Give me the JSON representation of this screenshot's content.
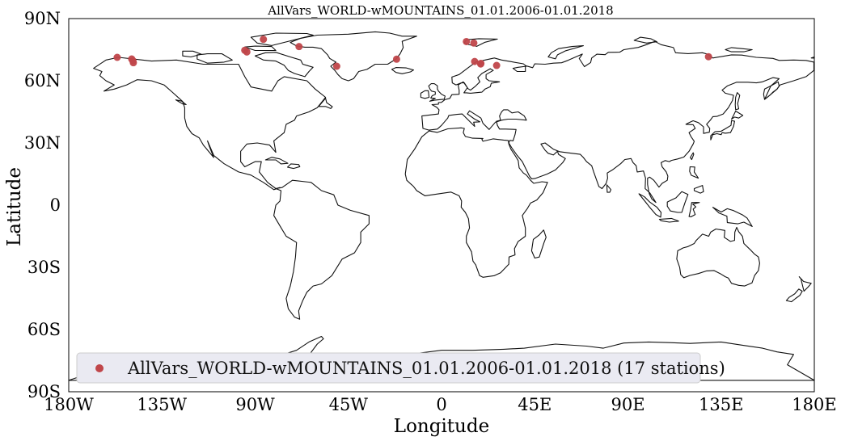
{
  "title": "AllVars_WORLD-wMOUNTAINS_01.01.2006-01.01.2018",
  "axes": {
    "xlabel": "Longitude",
    "ylabel": "Latitude",
    "xticks": [
      "180W",
      "135W",
      "90W",
      "45W",
      "0",
      "45E",
      "90E",
      "135E",
      "180E"
    ],
    "yticks": [
      "90N",
      "60N",
      "30N",
      "0",
      "30S",
      "60S",
      "90S"
    ],
    "xlim": [
      -180,
      180
    ],
    "ylim": [
      -90,
      90
    ]
  },
  "legend": {
    "label": "AllVars_WORLD-wMOUNTAINS_01.01.2006-01.01.2018 (17 stations)",
    "placement": "lower-left"
  },
  "colors": {
    "station": "#c0464a",
    "legend_bg": "#eaeaf2",
    "coastline": "#111111"
  },
  "chart_data": {
    "type": "scatter",
    "projection": "plate-carree",
    "series": [
      {
        "name": "AllVars_WORLD-wMOUNTAINS_01.01.2006-01.01.2018 (17 stations)",
        "points": [
          {
            "lon": -156.6,
            "lat": 71.3
          },
          {
            "lon": -149.6,
            "lat": 70.5
          },
          {
            "lon": -149.0,
            "lat": 69.6
          },
          {
            "lon": -148.8,
            "lat": 68.7
          },
          {
            "lon": -95.0,
            "lat": 74.7
          },
          {
            "lon": -94.0,
            "lat": 73.9
          },
          {
            "lon": -86.0,
            "lat": 80.0
          },
          {
            "lon": -68.8,
            "lat": 76.5
          },
          {
            "lon": -50.6,
            "lat": 67.0
          },
          {
            "lon": -21.7,
            "lat": 70.4
          },
          {
            "lon": 12.0,
            "lat": 78.9
          },
          {
            "lon": 15.6,
            "lat": 78.2
          },
          {
            "lon": 16.0,
            "lat": 69.3
          },
          {
            "lon": 19.0,
            "lat": 68.4
          },
          {
            "lon": 18.9,
            "lat": 68.1
          },
          {
            "lon": 26.6,
            "lat": 67.4
          },
          {
            "lon": 128.9,
            "lat": 71.6
          }
        ]
      }
    ]
  }
}
